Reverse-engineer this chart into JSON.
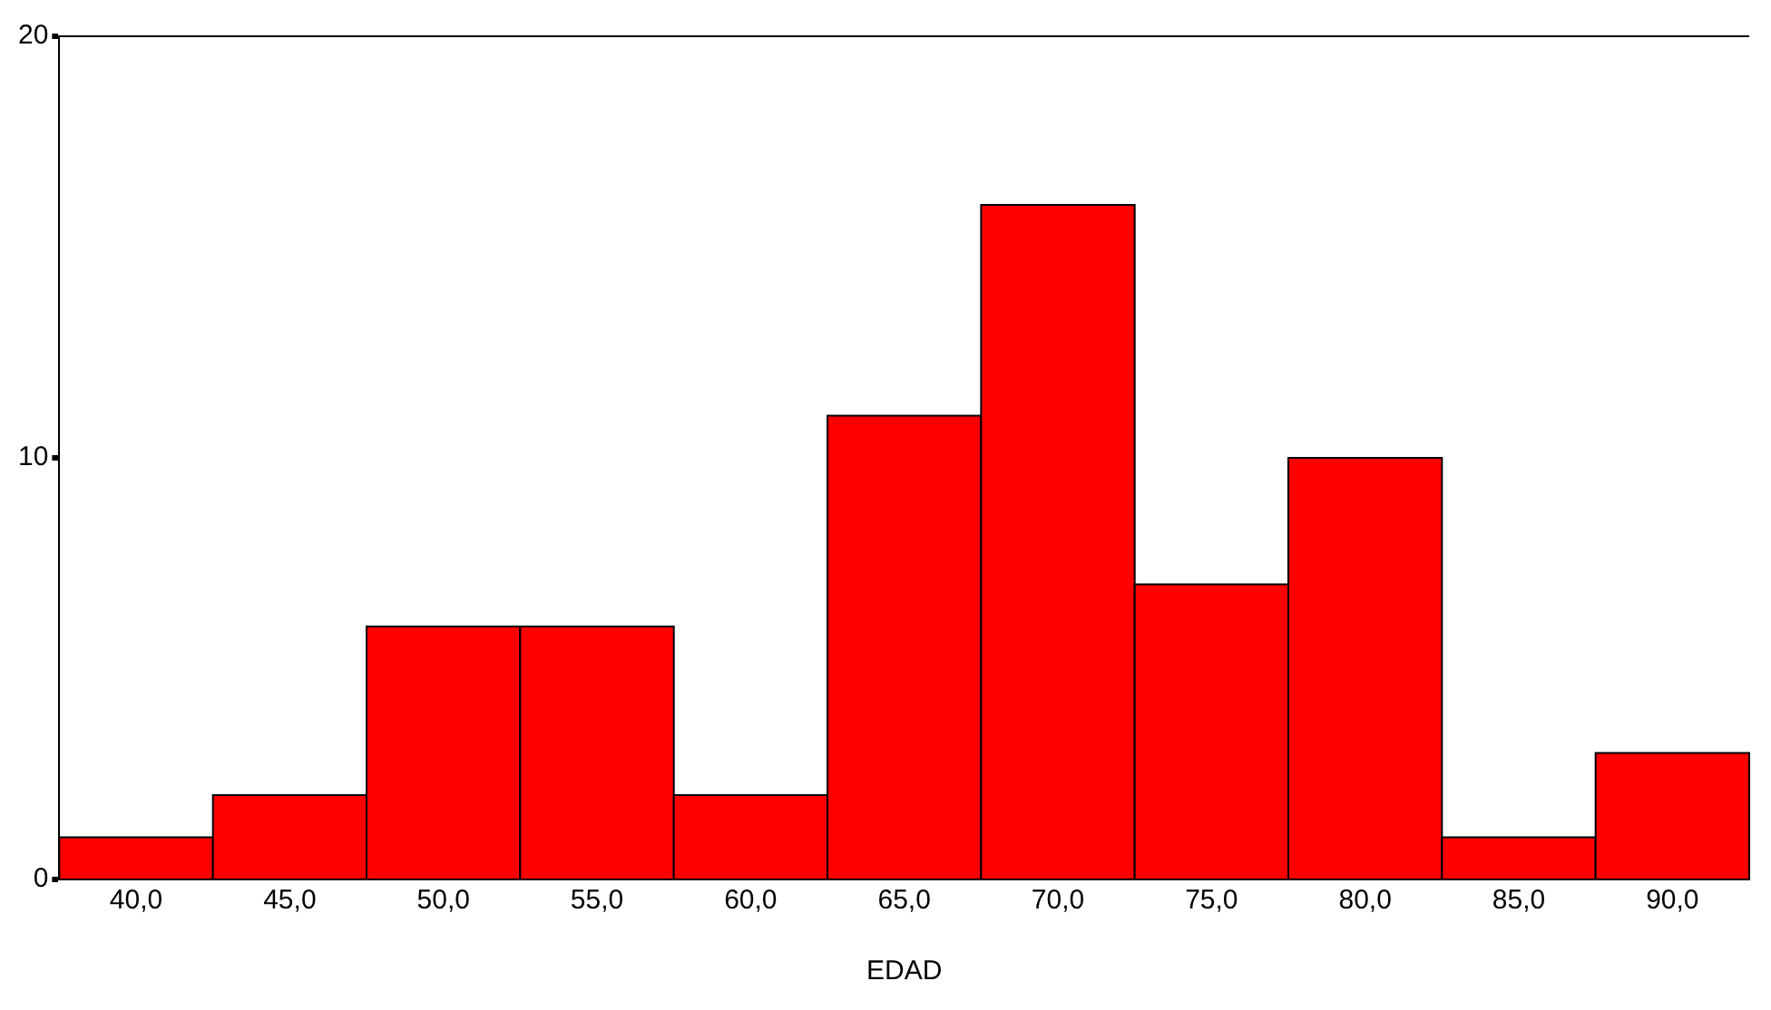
{
  "chart_data": {
    "type": "histogram",
    "xlabel": "EDAD",
    "bins": [
      37.5,
      42.5,
      47.5,
      52.5,
      57.5,
      62.5,
      67.5,
      72.5,
      77.5,
      82.5,
      87.5,
      92.5
    ],
    "values": [
      1,
      2,
      6,
      6,
      2,
      11,
      16,
      7,
      10,
      1,
      3
    ],
    "color": "#ff0000",
    "xlim": [
      37.5,
      92.5
    ],
    "xticks": [
      {
        "value": 40,
        "label": "40,0"
      },
      {
        "value": 45,
        "label": "45,0"
      },
      {
        "value": 50,
        "label": "50,0"
      },
      {
        "value": 55,
        "label": "55,0"
      },
      {
        "value": 60,
        "label": "60,0"
      },
      {
        "value": 65,
        "label": "65,0"
      },
      {
        "value": 70,
        "label": "70,0"
      },
      {
        "value": 75,
        "label": "75,0"
      },
      {
        "value": 80,
        "label": "80,0"
      },
      {
        "value": 85,
        "label": "85,0"
      },
      {
        "value": 90,
        "label": "90,0"
      }
    ],
    "ylim": [
      0,
      20
    ],
    "yticks": [
      0,
      10,
      20
    ],
    "grid": false,
    "legend": false
  }
}
